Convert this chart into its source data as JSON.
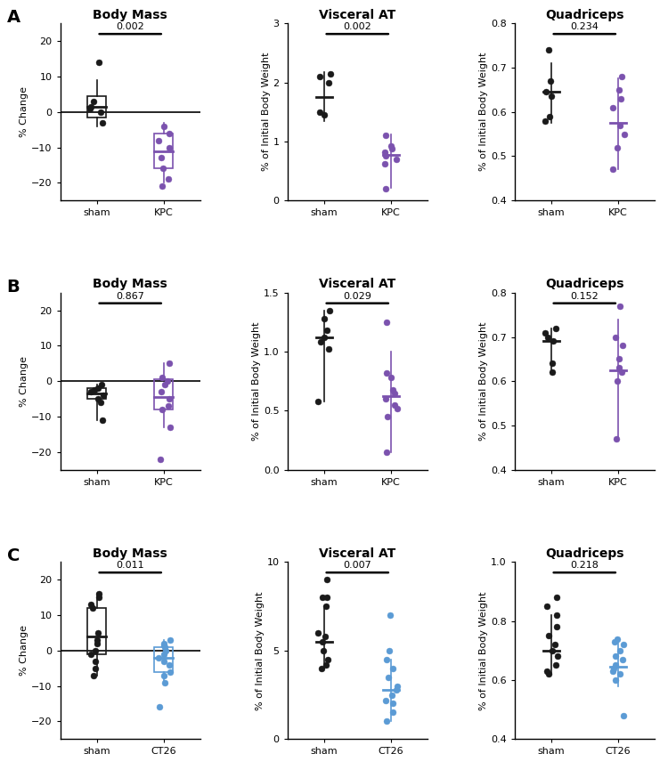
{
  "rows": [
    {
      "label": "A",
      "color_treat": "#7B52AE",
      "color_ctrl": "#1a1a1a",
      "treat_label": "KPC",
      "ctrl_label": "sham",
      "panels": [
        {
          "title": "Body Mass",
          "ylabel": "% Change",
          "ylim": [
            -25,
            25
          ],
          "yticks": [
            -20,
            -10,
            0,
            10,
            20
          ],
          "pval": "0.002",
          "ctrl_points": [
            14,
            3,
            1.5,
            1,
            0,
            -3
          ],
          "treat_points": [
            -4,
            -6,
            -8,
            -10,
            -13,
            -16,
            -19,
            -21
          ],
          "ctrl_median": 1.5,
          "ctrl_q1": -1.5,
          "ctrl_q3": 4.5,
          "treat_median": -11,
          "treat_q1": -16,
          "treat_q3": -6,
          "ctrl_sd_low": -4,
          "ctrl_sd_high": 9,
          "treat_sd_low": -20,
          "treat_sd_high": -3,
          "box": true
        },
        {
          "title": "Visceral AT",
          "ylabel": "% of Initial Body Weight",
          "ylim": [
            0,
            3
          ],
          "yticks": [
            0,
            1,
            2,
            3
          ],
          "pval": "0.002",
          "ctrl_points": [
            2.15,
            2.1,
            2.0,
            1.5,
            1.45
          ],
          "treat_points": [
            1.1,
            0.92,
            0.88,
            0.82,
            0.75,
            0.7,
            0.62,
            0.2
          ],
          "ctrl_median": 1.75,
          "ctrl_sd_low": 1.35,
          "ctrl_sd_high": 2.18,
          "treat_median": 0.78,
          "treat_sd_low": 0.22,
          "treat_sd_high": 1.12,
          "box": false
        },
        {
          "title": "Quadriceps",
          "ylabel": "% of Initial Body Weight",
          "ylim": [
            0.4,
            0.8
          ],
          "yticks": [
            0.4,
            0.5,
            0.6,
            0.7,
            0.8
          ],
          "pval": "0.234",
          "ctrl_points": [
            0.74,
            0.67,
            0.645,
            0.635,
            0.59,
            0.58
          ],
          "treat_points": [
            0.68,
            0.65,
            0.63,
            0.61,
            0.57,
            0.55,
            0.52,
            0.47
          ],
          "ctrl_median": 0.645,
          "ctrl_sd_low": 0.575,
          "ctrl_sd_high": 0.71,
          "treat_median": 0.575,
          "treat_sd_low": 0.47,
          "treat_sd_high": 0.675,
          "box": false
        }
      ]
    },
    {
      "label": "B",
      "color_treat": "#7B52AE",
      "color_ctrl": "#1a1a1a",
      "treat_label": "KPC",
      "ctrl_label": "sham",
      "panels": [
        {
          "title": "Body Mass",
          "ylabel": "% Change",
          "ylim": [
            -25,
            25
          ],
          "yticks": [
            -20,
            -10,
            0,
            10,
            20
          ],
          "pval": "0.867",
          "ctrl_points": [
            -1,
            -2,
            -2.5,
            -3,
            -4,
            -5,
            -6,
            -11
          ],
          "treat_points": [
            5,
            1,
            0,
            -1,
            -3,
            -5,
            -7,
            -8,
            -13,
            -22
          ],
          "ctrl_median": -3.5,
          "ctrl_q1": -5,
          "ctrl_q3": -2,
          "treat_median": -4.5,
          "treat_q1": -8,
          "treat_q3": 0.5,
          "ctrl_sd_low": -11,
          "ctrl_sd_high": -1,
          "treat_sd_low": -13,
          "treat_sd_high": 5,
          "box": true
        },
        {
          "title": "Visceral AT",
          "ylabel": "% of Initial Body Weight",
          "ylim": [
            0,
            1.5
          ],
          "yticks": [
            0.0,
            0.5,
            1.0,
            1.5
          ],
          "pval": "0.029",
          "ctrl_points": [
            1.35,
            1.28,
            1.18,
            1.12,
            1.08,
            1.02,
            0.58
          ],
          "treat_points": [
            1.25,
            0.82,
            0.78,
            0.68,
            0.65,
            0.6,
            0.55,
            0.52,
            0.45,
            0.15
          ],
          "ctrl_median": 1.12,
          "ctrl_sd_low": 0.58,
          "ctrl_sd_high": 1.35,
          "treat_median": 0.625,
          "treat_sd_low": 0.15,
          "treat_sd_high": 1.0,
          "box": false
        },
        {
          "title": "Quadriceps",
          "ylabel": "% of Initial Body Weight",
          "ylim": [
            0.4,
            0.8
          ],
          "yticks": [
            0.4,
            0.5,
            0.6,
            0.7,
            0.8
          ],
          "pval": "0.152",
          "ctrl_points": [
            0.72,
            0.71,
            0.7,
            0.69,
            0.64,
            0.62
          ],
          "treat_points": [
            0.77,
            0.7,
            0.68,
            0.65,
            0.63,
            0.62,
            0.6,
            0.47
          ],
          "ctrl_median": 0.69,
          "ctrl_sd_low": 0.62,
          "ctrl_sd_high": 0.72,
          "treat_median": 0.625,
          "treat_sd_low": 0.47,
          "treat_sd_high": 0.74,
          "box": false
        }
      ]
    },
    {
      "label": "C",
      "color_treat": "#5B9BD5",
      "color_ctrl": "#1a1a1a",
      "treat_label": "CT26",
      "ctrl_label": "sham",
      "panels": [
        {
          "title": "Body Mass",
          "ylabel": "% Change",
          "ylim": [
            -25,
            25
          ],
          "yticks": [
            -20,
            -10,
            0,
            10,
            20
          ],
          "pval": "0.011",
          "ctrl_points": [
            16,
            15,
            13,
            12,
            5,
            3,
            2,
            0,
            -1,
            -3,
            -5,
            -7
          ],
          "treat_points": [
            3,
            2,
            1.5,
            1,
            0,
            -1,
            -2,
            -3,
            -4,
            -6,
            -7,
            -9,
            -16
          ],
          "ctrl_median": 4,
          "ctrl_q1": -1,
          "ctrl_q3": 12,
          "treat_median": -2,
          "treat_q1": -6,
          "treat_q3": 1,
          "ctrl_sd_low": -7,
          "ctrl_sd_high": 16,
          "treat_sd_low": -9,
          "treat_sd_high": 3,
          "box": true
        },
        {
          "title": "Visceral AT",
          "ylabel": "% of Initial Body Weight",
          "ylim": [
            0,
            10
          ],
          "yticks": [
            0,
            5,
            10
          ],
          "pval": "0.007",
          "ctrl_points": [
            9,
            8,
            8,
            7.5,
            6,
            5.8,
            5.5,
            5,
            4.5,
            4.2,
            4.0
          ],
          "treat_points": [
            7,
            5,
            4.5,
            4,
            3.5,
            3.0,
            2.8,
            2.5,
            2.2,
            2.0,
            1.5,
            1.0
          ],
          "ctrl_median": 5.5,
          "ctrl_sd_low": 4.0,
          "ctrl_sd_high": 7.5,
          "treat_median": 2.8,
          "treat_sd_low": 1.0,
          "treat_sd_high": 4.5,
          "box": false
        },
        {
          "title": "Quadriceps",
          "ylabel": "% of Initial Body Weight",
          "ylim": [
            0.4,
            1.0
          ],
          "yticks": [
            0.4,
            0.6,
            0.8,
            1.0
          ],
          "pval": "0.218",
          "ctrl_points": [
            0.88,
            0.85,
            0.82,
            0.78,
            0.75,
            0.72,
            0.7,
            0.68,
            0.65,
            0.63,
            0.62
          ],
          "treat_points": [
            0.74,
            0.73,
            0.72,
            0.7,
            0.68,
            0.67,
            0.65,
            0.64,
            0.63,
            0.62,
            0.6,
            0.48
          ],
          "ctrl_median": 0.7,
          "ctrl_sd_low": 0.62,
          "ctrl_sd_high": 0.82,
          "treat_median": 0.645,
          "treat_sd_low": 0.58,
          "treat_sd_high": 0.74,
          "box": false
        }
      ]
    }
  ],
  "jitter_seed": 12,
  "marker": "o",
  "marker_size": 5,
  "bar_lw": 1.2,
  "spine_lw": 1.0,
  "bracket_lw": 1.8,
  "median_lw": 2.0
}
